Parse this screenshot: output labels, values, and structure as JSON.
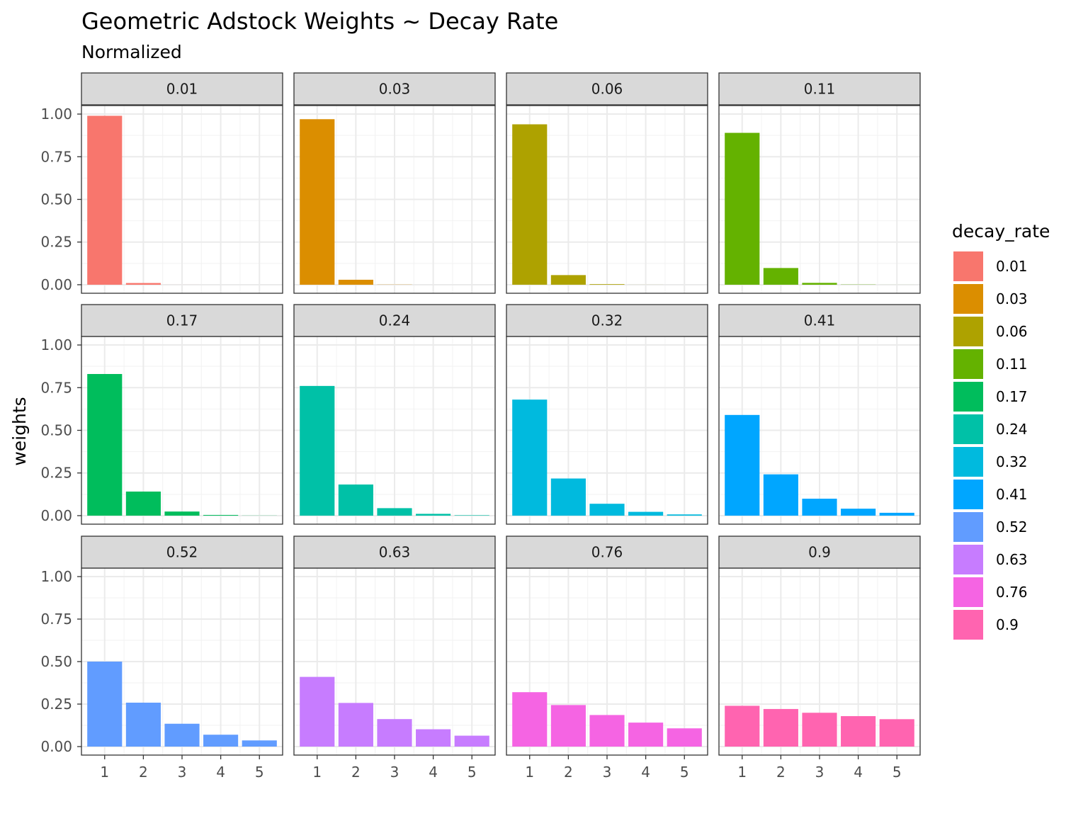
{
  "chart_data": {
    "type": "bar",
    "title": "Geometric Adstock Weights ~ Decay Rate",
    "subtitle": "Normalized",
    "xlabel": "",
    "ylabel": "weights",
    "x_categories": [
      "1",
      "2",
      "3",
      "4",
      "5"
    ],
    "ylim": [
      -0.05,
      1.05
    ],
    "y_ticks": [
      0,
      0.25,
      0.5,
      0.75,
      1.0
    ],
    "y_tick_labels": [
      "0.00",
      "0.25",
      "0.50",
      "0.75",
      "1.00"
    ],
    "grid": true,
    "legend_title": "decay_rate",
    "legend_position": "right",
    "facets": [
      {
        "label": "0.01",
        "color": "#F8766D",
        "values": [
          0.99,
          0.0099,
          0.0001,
          1e-06,
          1e-08
        ]
      },
      {
        "label": "0.03",
        "color": "#DB8E00",
        "values": [
          0.97,
          0.0291,
          0.0009,
          3e-05,
          8e-07
        ]
      },
      {
        "label": "0.06",
        "color": "#AEA200",
        "values": [
          0.94,
          0.0564,
          0.0034,
          0.0002,
          1e-05
        ]
      },
      {
        "label": "0.11",
        "color": "#64B200",
        "values": [
          0.89,
          0.0979,
          0.0108,
          0.0012,
          0.0001
        ]
      },
      {
        "label": "0.17",
        "color": "#00BD5C",
        "values": [
          0.83,
          0.1411,
          0.024,
          0.0041,
          0.0007
        ]
      },
      {
        "label": "0.24",
        "color": "#00C1A7",
        "values": [
          0.76,
          0.1824,
          0.0438,
          0.0105,
          0.0025
        ]
      },
      {
        "label": "0.32",
        "color": "#00BADE",
        "values": [
          0.68,
          0.2176,
          0.0696,
          0.0223,
          0.0071
        ]
      },
      {
        "label": "0.41",
        "color": "#00A6FF",
        "values": [
          0.59,
          0.2419,
          0.0992,
          0.0407,
          0.0167
        ]
      },
      {
        "label": "0.52",
        "color": "#619CFF",
        "values": [
          0.5,
          0.2584,
          0.1344,
          0.0699,
          0.0363
        ]
      },
      {
        "label": "0.63",
        "color": "#C77CFF",
        "values": [
          0.41,
          0.2568,
          0.1618,
          0.1019,
          0.0642
        ]
      },
      {
        "label": "0.76",
        "color": "#F564E3",
        "values": [
          0.32,
          0.2443,
          0.1857,
          0.1411,
          0.1073
        ]
      },
      {
        "label": "0.9",
        "color": "#FF64B0",
        "values": [
          0.24,
          0.2211,
          0.199,
          0.1791,
          0.1612
        ]
      }
    ]
  }
}
